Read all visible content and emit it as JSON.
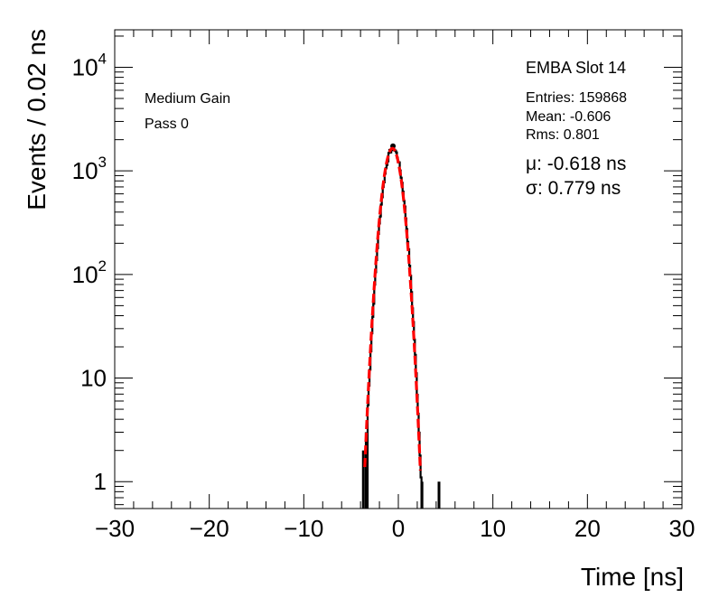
{
  "chart_data": {
    "type": "histogram",
    "xlabel": "Time [ns]",
    "ylabel": "Events / 0.02 ns",
    "xlim": [
      -30,
      30
    ],
    "ylim": [
      0.55,
      23000
    ],
    "yscale": "log",
    "x_ticks": [
      {
        "value": -30,
        "label": "−30"
      },
      {
        "value": -20,
        "label": "−20"
      },
      {
        "value": -10,
        "label": "−10"
      },
      {
        "value": 0,
        "label": "0"
      },
      {
        "value": 10,
        "label": "10"
      },
      {
        "value": 20,
        "label": "20"
      },
      {
        "value": 30,
        "label": "30"
      }
    ],
    "y_ticks": [
      {
        "value": 1,
        "base": "1",
        "exp": ""
      },
      {
        "value": 10,
        "base": "10",
        "exp": ""
      },
      {
        "value": 100,
        "base": "10",
        "exp": "2"
      },
      {
        "value": 1000,
        "base": "10",
        "exp": "3"
      },
      {
        "value": 10000,
        "base": "10",
        "exp": "4"
      }
    ],
    "fit": {
      "type": "gaussian",
      "mean": -0.618,
      "sigma": 0.779,
      "peak": 1650,
      "color": "#ff0000"
    },
    "histogram_color": "#000000",
    "extra_bins": [
      {
        "x": -3.7,
        "y": 2
      },
      {
        "x": -3.4,
        "y": 3
      },
      {
        "x": 2.5,
        "y": 1
      },
      {
        "x": 4.3,
        "y": 1
      }
    ],
    "labels_left": [
      "Medium Gain",
      "Pass 0"
    ],
    "stats": {
      "title": "EMBA Slot 14",
      "entries": "Entries: 159868",
      "mean": "Mean: -0.606",
      "rms": "Rms: 0.801",
      "mu": "μ: -0.618 ns",
      "sigma": "σ: 0.779 ns"
    }
  }
}
